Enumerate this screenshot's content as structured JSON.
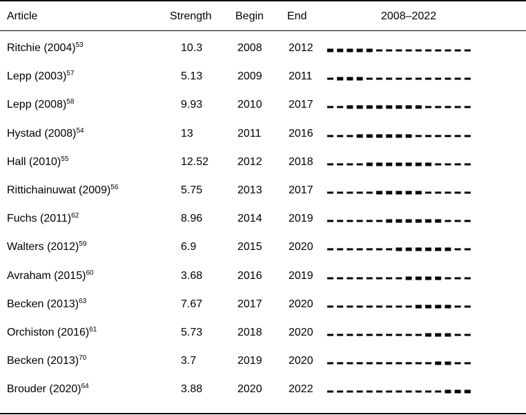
{
  "table": {
    "headers": {
      "article": "Article",
      "strength": "Strength",
      "begin": "Begin",
      "end": "End",
      "timeline": "2008–2022"
    },
    "timeline_start": 2008,
    "timeline_end": 2022,
    "colors": {
      "text": "#000000",
      "bar_thin": "#000000",
      "bar_thick": "#000000"
    },
    "rows": [
      {
        "article": "Ritchie (2004)",
        "ref": "53",
        "strength": "10.3",
        "begin": "2008",
        "end": "2012"
      },
      {
        "article": "Lepp (2003)",
        "ref": "57",
        "strength": "5.13",
        "begin": "2009",
        "end": "2011"
      },
      {
        "article": "Lepp (2008)",
        "ref": "58",
        "strength": "9.93",
        "begin": "2010",
        "end": "2017"
      },
      {
        "article": "Hystad (2008)",
        "ref": "54",
        "strength": "13",
        "begin": "2011",
        "end": "2016"
      },
      {
        "article": "Hall (2010)",
        "ref": "55",
        "strength": "12.52",
        "begin": "2012",
        "end": "2018"
      },
      {
        "article": "Rittichainuwat (2009)",
        "ref": "56",
        "strength": "5.75",
        "begin": "2013",
        "end": "2017"
      },
      {
        "article": "Fuchs (2011)",
        "ref": "62",
        "strength": "8.96",
        "begin": "2014",
        "end": "2019"
      },
      {
        "article": "Walters (2012)",
        "ref": "59",
        "strength": "6.9",
        "begin": "2015",
        "end": "2020"
      },
      {
        "article": "Avraham (2015)",
        "ref": "60",
        "strength": "3.68",
        "begin": "2016",
        "end": "2019"
      },
      {
        "article": "Becken (2013)",
        "ref": "63",
        "strength": "7.67",
        "begin": "2017",
        "end": "2020"
      },
      {
        "article": "Orchiston (2016)",
        "ref": "61",
        "strength": "5.73",
        "begin": "2018",
        "end": "2020"
      },
      {
        "article": "Becken (2013)",
        "ref": "70",
        "strength": "3.7",
        "begin": "2019",
        "end": "2020"
      },
      {
        "article": "Brouder (2020)",
        "ref": "64",
        "strength": "3.88",
        "begin": "2020",
        "end": "2022"
      }
    ]
  }
}
